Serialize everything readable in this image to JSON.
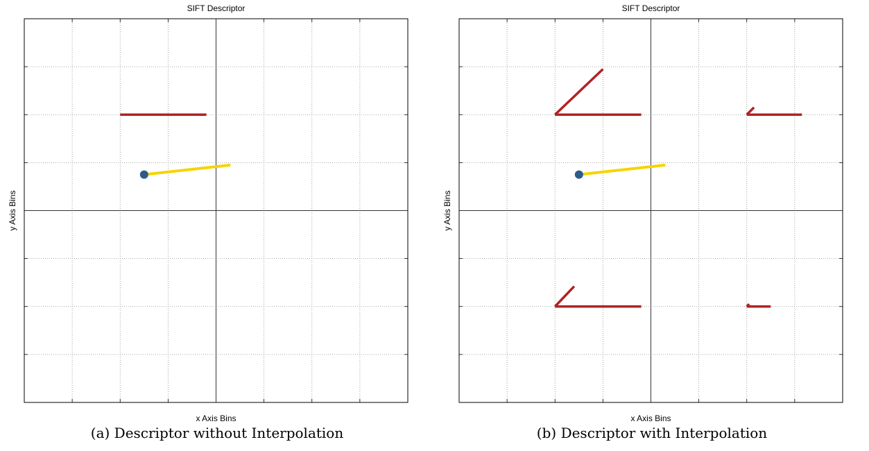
{
  "chart_data": [
    {
      "type": "line",
      "title": "SIFT Descriptor",
      "xlabel": "x Axis Bins",
      "ylabel": "y Axis Bins",
      "xlim": [
        -4,
        4
      ],
      "ylim": [
        -4,
        4
      ],
      "grid": true,
      "caption": "(a) Descriptor without Interpolation",
      "colors": {
        "histogram": "#b22222",
        "orientation": "#f5d400",
        "keypoint": "#2b5c8a"
      },
      "keypoint": {
        "x": -1.5,
        "y": 0.75
      },
      "orientation_vector": {
        "x": [
          -1.5,
          0.3
        ],
        "y": [
          0.75,
          0.95
        ]
      },
      "histogram_segments": [
        {
          "x": [
            -2,
            -0.2
          ],
          "y": [
            2,
            2
          ]
        }
      ]
    },
    {
      "type": "line",
      "title": "SIFT Descriptor",
      "xlabel": "x Axis Bins",
      "ylabel": "y Axis Bins",
      "xlim": [
        -4,
        4
      ],
      "ylim": [
        -4,
        4
      ],
      "grid": true,
      "caption": "(b) Descriptor with Interpolation",
      "colors": {
        "histogram": "#b22222",
        "orientation": "#f5d400",
        "keypoint": "#2b5c8a"
      },
      "keypoint": {
        "x": -1.5,
        "y": 0.75
      },
      "orientation_vector": {
        "x": [
          -1.5,
          0.3
        ],
        "y": [
          0.75,
          0.95
        ]
      },
      "histogram_segments": [
        {
          "x": [
            -2,
            -0.2
          ],
          "y": [
            2,
            2
          ]
        },
        {
          "x": [
            -2,
            -1.0
          ],
          "y": [
            2,
            2.95
          ]
        },
        {
          "x": [
            2,
            3.15
          ],
          "y": [
            2,
            2
          ]
        },
        {
          "x": [
            2,
            2.15
          ],
          "y": [
            2,
            2.15
          ]
        },
        {
          "x": [
            -2,
            -0.2
          ],
          "y": [
            -2,
            -2
          ]
        },
        {
          "x": [
            -2,
            -1.6
          ],
          "y": [
            -2,
            -1.58
          ]
        },
        {
          "x": [
            2,
            2.5
          ],
          "y": [
            -2,
            -2
          ]
        },
        {
          "x": [
            2,
            2.05
          ],
          "y": [
            -2,
            -1.95
          ]
        }
      ]
    }
  ]
}
